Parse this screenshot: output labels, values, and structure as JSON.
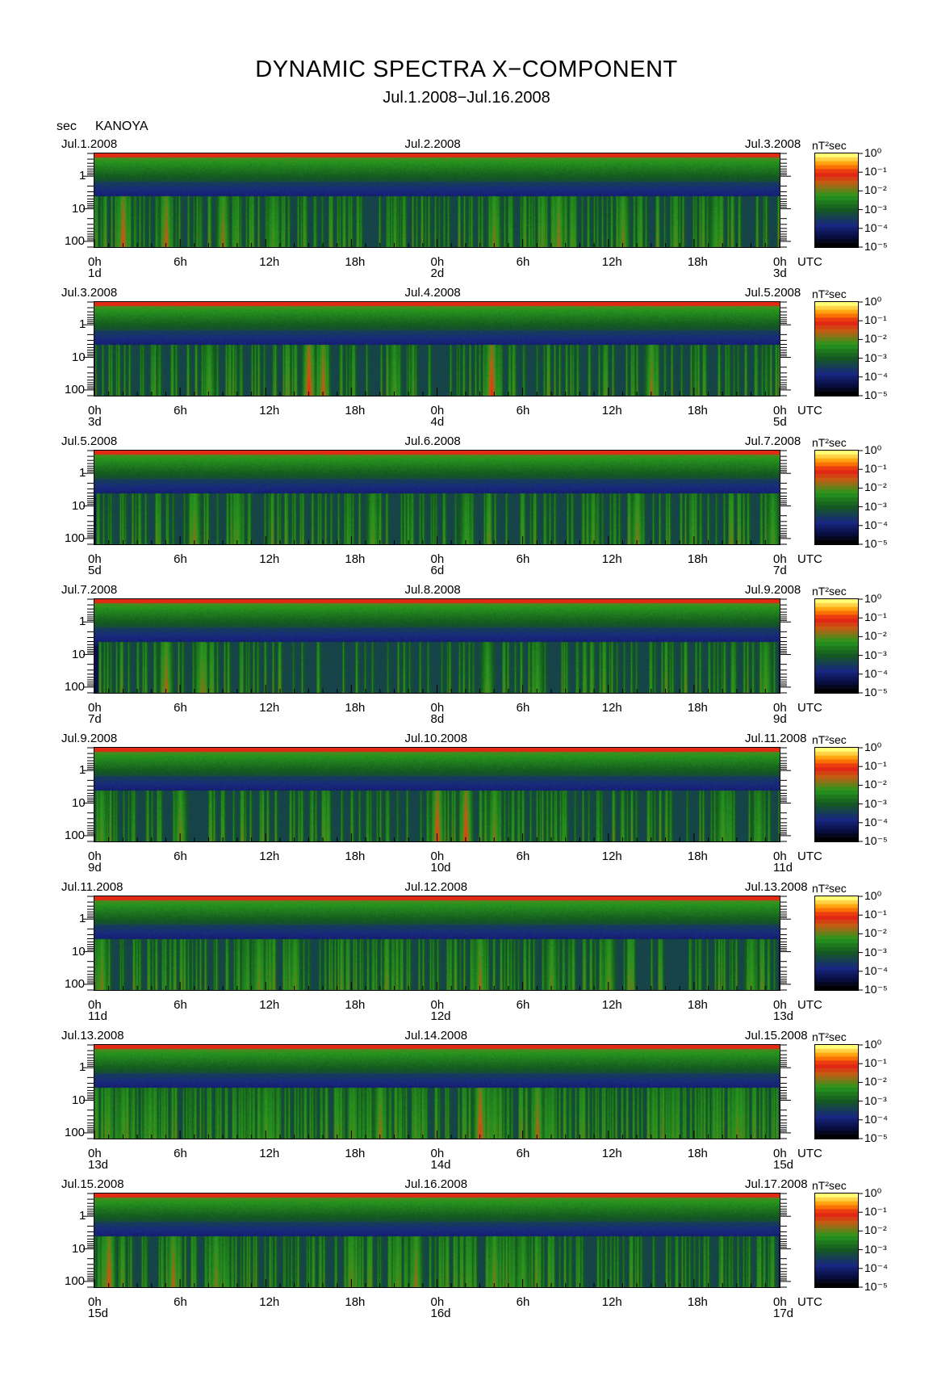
{
  "header": {
    "title": "DYNAMIC SPECTRA X−COMPONENT",
    "subtitle": "Jul.1.2008−Jul.16.2008",
    "yaxis_unit": "sec",
    "station": "KANOYA"
  },
  "chart_data": {
    "type": "heatmap",
    "title": "DYNAMIC SPECTRA X−COMPONENT",
    "subtitle": "Jul.1.2008−Jul.16.2008",
    "station": "KANOYA",
    "ylabel": "sec",
    "y_scale": "log",
    "y_reversed": true,
    "y_ticks": [
      "1",
      "10",
      "100"
    ],
    "x_ticks": [
      "0h",
      "6h",
      "12h",
      "18h",
      "0h",
      "6h",
      "12h",
      "18h",
      "0h"
    ],
    "x_suffix": "UTC",
    "colorbar": {
      "unit": "nT²sec",
      "labels": [
        "10⁰",
        "10⁻¹",
        "10⁻²",
        "10⁻³",
        "10⁻⁴",
        "10⁻⁵"
      ],
      "range": [
        1e-05,
        1
      ]
    },
    "panels": [
      {
        "date_left": "Jul.1.2008",
        "date_mid": "Jul.2.2008",
        "date_right": "Jul.3.2008",
        "day_labels": [
          "1d",
          "2d",
          "3d"
        ],
        "events": [
          [
            2,
            60,
            0.9
          ],
          [
            5,
            45,
            0.85
          ],
          [
            9,
            30,
            0.75
          ],
          [
            12.5,
            30,
            0.6
          ],
          [
            28,
            20,
            0.7
          ],
          [
            32.5,
            20,
            0.75
          ],
          [
            37,
            15,
            0.7
          ],
          [
            43.5,
            40,
            0.55
          ]
        ],
        "activity": 0.45
      },
      {
        "date_left": "Jul.3.2008",
        "date_mid": "Jul.4.2008",
        "date_right": "Jul.5.2008",
        "day_labels": [
          "3d",
          "4d",
          "5d"
        ],
        "events": [
          [
            15,
            120,
            1.0
          ],
          [
            16,
            80,
            0.85
          ],
          [
            21,
            40,
            0.6
          ],
          [
            27.8,
            150,
            1.0
          ],
          [
            39,
            20,
            0.75
          ],
          [
            8,
            30,
            0.6
          ]
        ],
        "activity": 0.4
      },
      {
        "date_left": "Jul.5.2008",
        "date_mid": "Jul.6.2008",
        "date_right": "Jul.7.2008",
        "day_labels": [
          "5d",
          "6d",
          "7d"
        ],
        "events": [
          [
            7,
            40,
            0.7
          ],
          [
            10,
            30,
            0.6
          ],
          [
            19.5,
            30,
            0.6
          ],
          [
            26,
            20,
            0.55
          ],
          [
            38,
            20,
            0.7
          ],
          [
            47.5,
            25,
            0.6
          ]
        ],
        "activity": 0.35
      },
      {
        "date_left": "Jul.7.2008",
        "date_mid": "Jul.8.2008",
        "date_right": "Jul.9.2008",
        "day_labels": [
          "7d",
          "8d",
          "9d"
        ],
        "events": [
          [
            5,
            40,
            0.8
          ],
          [
            7.5,
            40,
            0.7
          ],
          [
            27.5,
            25,
            0.6
          ],
          [
            31,
            20,
            0.55
          ],
          [
            47,
            20,
            0.6
          ]
        ],
        "activity": 0.35
      },
      {
        "date_left": "Jul.9.2008",
        "date_mid": "Jul.10.2008",
        "date_right": "Jul.11.2008",
        "day_labels": [
          "9d",
          "10d",
          "11d"
        ],
        "events": [
          [
            0.5,
            30,
            0.6
          ],
          [
            6,
            30,
            0.7
          ],
          [
            24,
            120,
            0.95
          ],
          [
            26,
            100,
            0.95
          ],
          [
            28,
            60,
            0.7
          ],
          [
            44,
            40,
            0.6
          ],
          [
            46.5,
            20,
            0.55
          ]
        ],
        "activity": 0.4
      },
      {
        "date_left": "Jul.11.2008",
        "date_mid": "Jul.12.2008",
        "date_right": "Jul.13.2008",
        "day_labels": [
          "11d",
          "12d",
          "13d"
        ],
        "events": [
          [
            0.5,
            30,
            0.7
          ],
          [
            11.5,
            30,
            0.65
          ],
          [
            14,
            25,
            0.6
          ],
          [
            27,
            40,
            0.75
          ],
          [
            32,
            30,
            0.65
          ],
          [
            36,
            25,
            0.65
          ],
          [
            46,
            30,
            0.6
          ]
        ],
        "activity": 0.55
      },
      {
        "date_left": "Jul.13.2008",
        "date_mid": "Jul.14.2008",
        "date_right": "Jul.15.2008",
        "day_labels": [
          "13d",
          "14d",
          "15d"
        ],
        "events": [
          [
            2,
            40,
            0.6
          ],
          [
            12,
            40,
            0.6
          ],
          [
            20,
            60,
            0.75
          ],
          [
            27,
            90,
            0.95
          ],
          [
            31,
            60,
            0.8
          ],
          [
            45,
            40,
            0.65
          ]
        ],
        "activity": 0.75
      },
      {
        "date_left": "Jul.15.2008",
        "date_mid": "Jul.16.2008",
        "date_right": "Jul.17.2008",
        "day_labels": [
          "15d",
          "16d",
          "17d"
        ],
        "events": [
          [
            1,
            60,
            0.9
          ],
          [
            5.5,
            50,
            0.8
          ],
          [
            8.5,
            40,
            0.7
          ],
          [
            18,
            40,
            0.65
          ],
          [
            22.5,
            40,
            0.75
          ],
          [
            28,
            40,
            0.7
          ],
          [
            30,
            30,
            0.6
          ]
        ],
        "activity": 0.55
      }
    ]
  }
}
